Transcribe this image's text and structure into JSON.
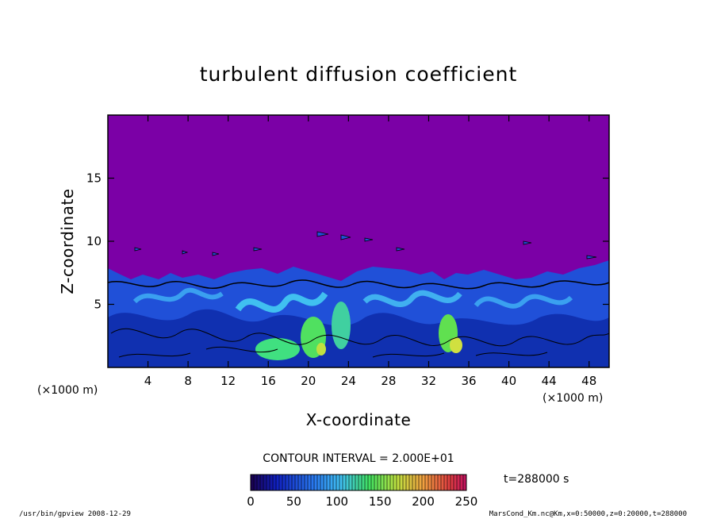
{
  "chart_data": {
    "type": "heatmap",
    "title": "turbulent diffusion coefficient",
    "xlabel": "X-coordinate",
    "ylabel": "Z-coordinate",
    "x_unit": "(×1000 m)",
    "z_unit": "(×1000 m)",
    "x_range": [
      0,
      50
    ],
    "z_range": [
      0,
      20
    ],
    "x_ticks": [
      "4",
      "8",
      "12",
      "16",
      "20",
      "24",
      "28",
      "32",
      "36",
      "40",
      "44",
      "48"
    ],
    "x_tick_values": [
      4,
      8,
      12,
      16,
      20,
      24,
      28,
      32,
      36,
      40,
      44,
      48
    ],
    "z_ticks": [
      "5",
      "10",
      "15"
    ],
    "z_tick_values": [
      5,
      10,
      15
    ],
    "contour_interval": "CONTOUR INTERVAL = 2.000E+01",
    "colorbar": {
      "min": 0,
      "max": 250,
      "tick_labels": [
        "0",
        "50",
        "100",
        "150",
        "200",
        "250"
      ],
      "tick_values": [
        0,
        50,
        100,
        150,
        200,
        250
      ]
    },
    "time_label": "t=288000 s",
    "background_color": "#7b00a6",
    "grid": false
  },
  "footer": {
    "left": "/usr/bin/gpview  2008-12-29",
    "right": "MarsCond_Km.nc@Km,x=0:50000,z=0:20000,t=288000"
  }
}
